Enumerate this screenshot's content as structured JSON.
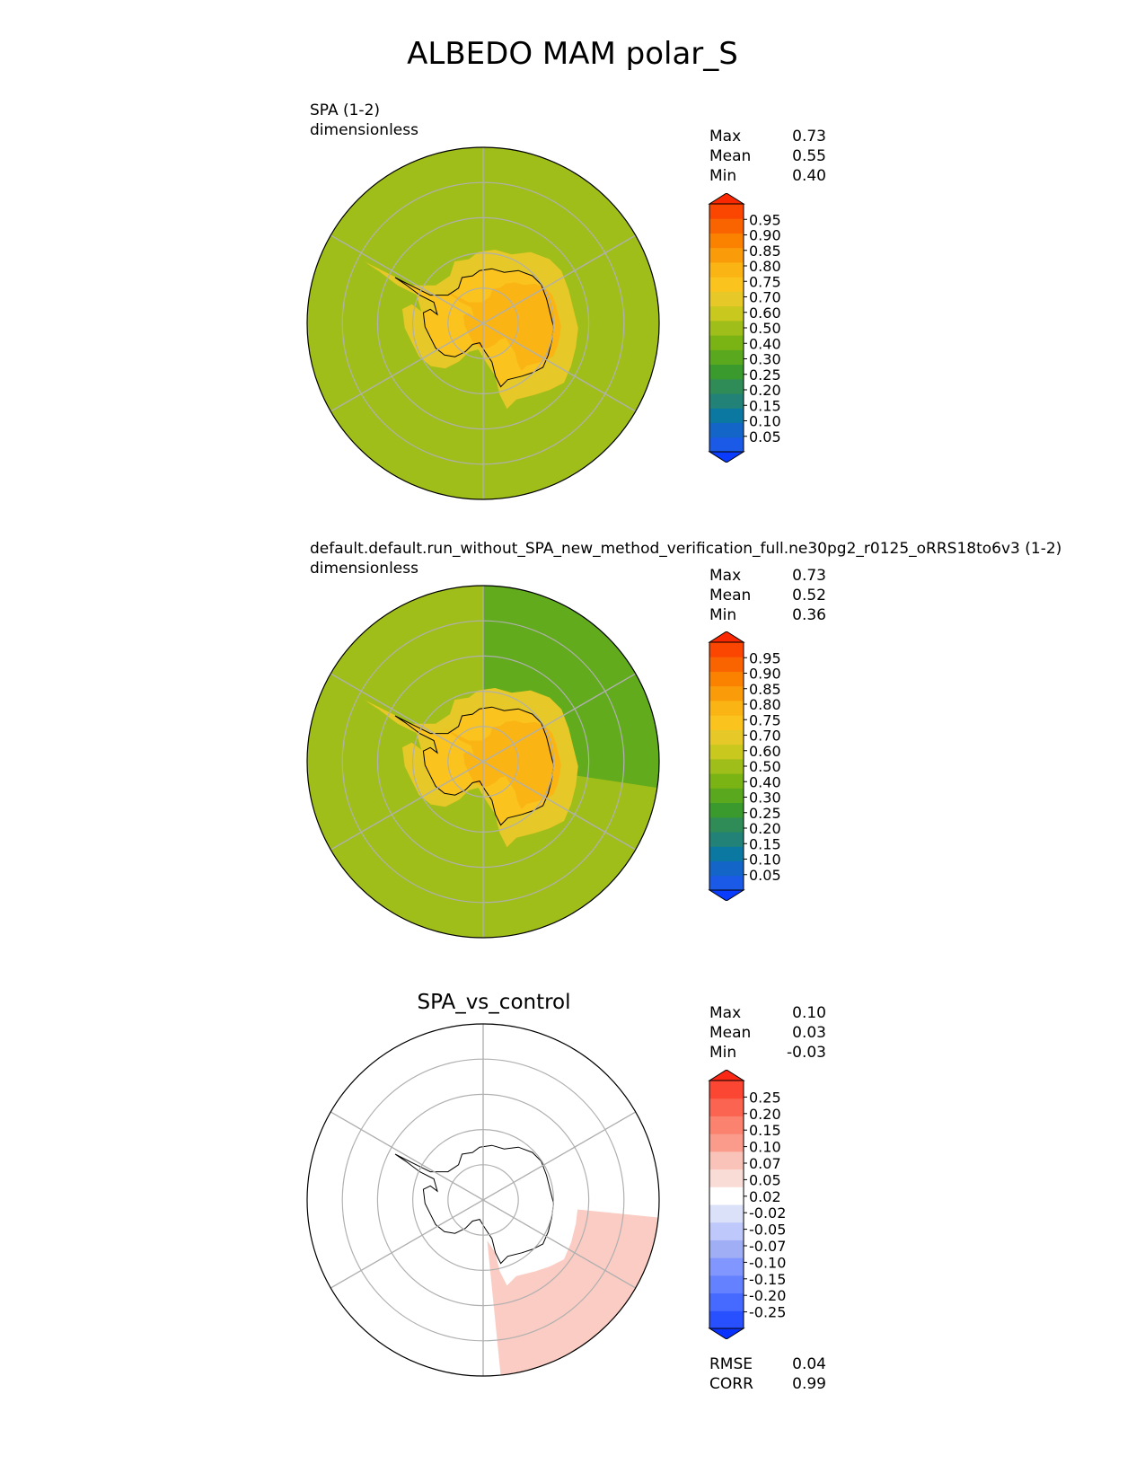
{
  "figure_title": "ALBEDO MAM polar_S",
  "panels": [
    {
      "title_line1": "SPA (1-2)",
      "title_line2": "dimensionless",
      "stats": [
        {
          "label": "Max",
          "value": "0.73"
        },
        {
          "label": "Mean",
          "value": "0.55"
        },
        {
          "label": "Min",
          "value": "0.40"
        }
      ]
    },
    {
      "title_line1": "default.default.run_without_SPA_new_method_verification_full.ne30pg2_r0125_oRRS18to6v3 (1-2)",
      "title_line2": "dimensionless",
      "stats": [
        {
          "label": "Max",
          "value": "0.73"
        },
        {
          "label": "Mean",
          "value": "0.52"
        },
        {
          "label": "Min",
          "value": "0.36"
        }
      ]
    },
    {
      "title": "SPA_vs_control",
      "stats": [
        {
          "label": "Max",
          "value": "0.10"
        },
        {
          "label": "Mean",
          "value": "0.03"
        },
        {
          "label": "Min",
          "value": "-0.03"
        }
      ],
      "metrics": [
        {
          "label": "RMSE",
          "value": "0.04"
        },
        {
          "label": "CORR",
          "value": "0.99"
        }
      ]
    }
  ],
  "chart_data": [
    {
      "type": "heatmap",
      "projection": "south polar stereographic",
      "title": "SPA (1-2)",
      "units": "dimensionless",
      "colorbar_ticks": [
        "0.05",
        "0.10",
        "0.15",
        "0.20",
        "0.25",
        "0.30",
        "0.40",
        "0.50",
        "0.60",
        "0.70",
        "0.75",
        "0.80",
        "0.85",
        "0.90",
        "0.95"
      ],
      "colorbar_colors": [
        "#0a3cff",
        "#1a5ae6",
        "#1366c8",
        "#0a78a0",
        "#238278",
        "#2f8c56",
        "#3a9a2d",
        "#5aa81e",
        "#7ab414",
        "#a0be19",
        "#c8c81e",
        "#e6c828",
        "#fac31e",
        "#fab414",
        "#fa9b0a",
        "#fa8200",
        "#fa6400",
        "#fa4600",
        "#fa2800"
      ],
      "extend": "both",
      "field": {
        "ocean": 0.5,
        "continent_coast": 0.65,
        "continent_interior": 0.72
      },
      "stats": {
        "max": 0.73,
        "mean": 0.55,
        "min": 0.4
      }
    },
    {
      "type": "heatmap",
      "projection": "south polar stereographic",
      "title": "default.default.run_without_SPA_new_method_verification_full.ne30pg2_r0125_oRRS18to6v3 (1-2)",
      "units": "dimensionless",
      "colorbar_ticks": [
        "0.05",
        "0.10",
        "0.15",
        "0.20",
        "0.25",
        "0.30",
        "0.40",
        "0.50",
        "0.60",
        "0.70",
        "0.75",
        "0.80",
        "0.85",
        "0.90",
        "0.95"
      ],
      "colorbar_colors": [
        "#0a3cff",
        "#1a5ae6",
        "#1366c8",
        "#0a78a0",
        "#238278",
        "#2f8c56",
        "#3a9a2d",
        "#5aa81e",
        "#7ab414",
        "#a0be19",
        "#c8c81e",
        "#e6c828",
        "#fac31e",
        "#fab414",
        "#fa9b0a",
        "#fa8200",
        "#fa6400",
        "#fa4600",
        "#fa2800"
      ],
      "extend": "both",
      "field": {
        "ocean": 0.5,
        "ocean_east_sector": 0.4,
        "continent_coast": 0.65,
        "continent_interior": 0.72
      },
      "stats": {
        "max": 0.73,
        "mean": 0.52,
        "min": 0.36
      }
    },
    {
      "type": "heatmap",
      "projection": "south polar stereographic",
      "title": "SPA_vs_control",
      "colorbar_ticks": [
        "-0.25",
        "-0.20",
        "-0.15",
        "-0.10",
        "-0.07",
        "-0.05",
        "-0.02",
        "0.02",
        "0.05",
        "0.07",
        "0.10",
        "0.15",
        "0.20",
        "0.25"
      ],
      "colorbar_colors": [
        "#0a32ff",
        "#2850ff",
        "#4669ff",
        "#6482ff",
        "#8296ff",
        "#a0aff5",
        "#bec8fa",
        "#dce1fa",
        "#ffffff",
        "#fadcd7",
        "#fac3b9",
        "#fa9b8c",
        "#fa826e",
        "#fa6450",
        "#fa4632",
        "#fa2814"
      ],
      "extend": "both",
      "field": {
        "continent": 0.0,
        "ocean": 0.03,
        "ocean_east_sector": 0.08
      },
      "stats": {
        "max": 0.1,
        "mean": 0.03,
        "min": -0.03,
        "rmse": 0.04,
        "corr": 0.99
      }
    }
  ]
}
